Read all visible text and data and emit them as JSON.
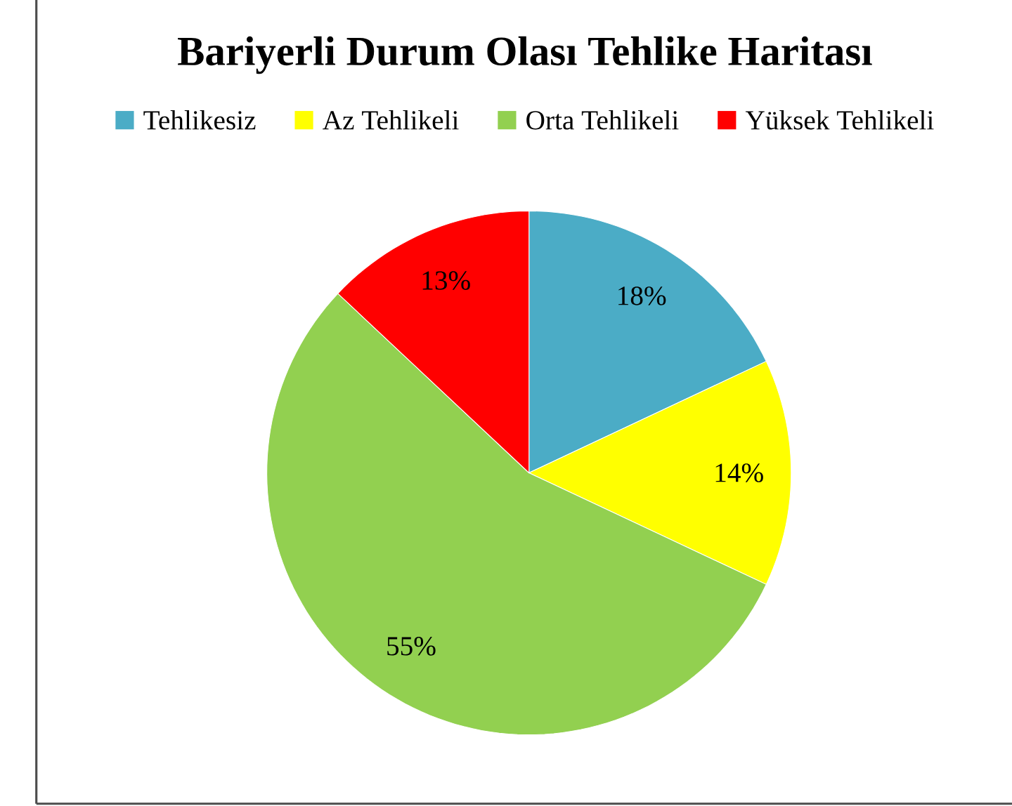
{
  "chart_data": {
    "type": "pie",
    "title": "Bariyerli Durum Olası Tehlike Haritası",
    "categories": [
      "Tehlikesiz",
      "Az Tehlikeli",
      "Orta Tehlikeli",
      "Yüksek Tehlikeli"
    ],
    "values": [
      18,
      14,
      55,
      13
    ],
    "colors": [
      "#4bacc6",
      "#ffff00",
      "#92d050",
      "#ff0000"
    ],
    "value_labels": [
      "18%",
      "14%",
      "55%",
      "13%"
    ],
    "legend": "top"
  }
}
